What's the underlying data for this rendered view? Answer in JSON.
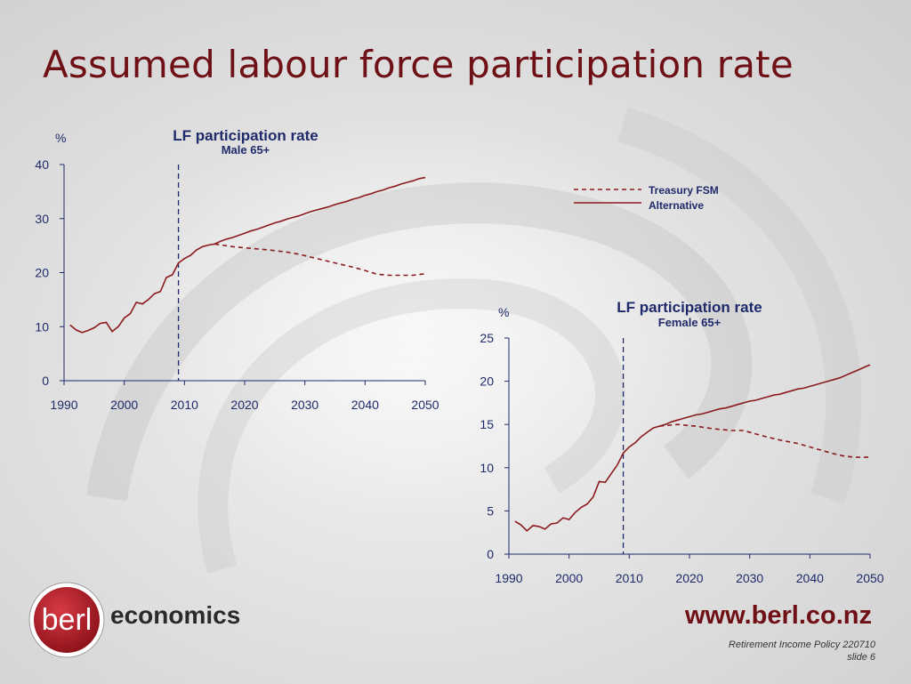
{
  "slide": {
    "title": "Assumed labour force participation rate"
  },
  "legend": {
    "items": [
      {
        "label": "Treasury FSM",
        "style": "dashed"
      },
      {
        "label": "Alternative",
        "style": "solid"
      }
    ]
  },
  "colors": {
    "series": "#8b1a1f",
    "axis_text": "#1f2a6b",
    "title": "#6e1016",
    "logo_bg": "#b51f2a"
  },
  "branding": {
    "logo_text": "berl",
    "logo_suffix": "economics",
    "url": "www.berl.co.nz",
    "footer_line1": "Retirement Income Policy 220710",
    "footer_line2": "slide 6"
  },
  "chart_data": [
    {
      "type": "line",
      "title": "LF participation  rate",
      "subtitle": "Male 65+",
      "ylabel": "%",
      "xlabel": "",
      "xlim": [
        1990,
        2050
      ],
      "ylim": [
        0,
        40
      ],
      "xticks": [
        1990,
        2000,
        2010,
        2020,
        2030,
        2040,
        2050
      ],
      "yticks": [
        0,
        10,
        20,
        30,
        40
      ],
      "vline_x": 2009,
      "series": [
        {
          "name": "Alternative",
          "style": "solid",
          "x": [
            1991,
            1992,
            1993,
            1994,
            1995,
            1996,
            1997,
            1998,
            1999,
            2000,
            2001,
            2002,
            2003,
            2004,
            2005,
            2006,
            2007,
            2008,
            2009,
            2010,
            2011,
            2012,
            2013,
            2014,
            2015,
            2016,
            2017,
            2018,
            2019,
            2020,
            2021,
            2022,
            2023,
            2024,
            2025,
            2026,
            2027,
            2028,
            2029,
            2030,
            2031,
            2032,
            2033,
            2034,
            2035,
            2036,
            2037,
            2038,
            2039,
            2040,
            2041,
            2042,
            2043,
            2044,
            2045,
            2046,
            2047,
            2048,
            2049,
            2050
          ],
          "y": [
            10.3,
            9.4,
            8.9,
            9.3,
            9.8,
            10.6,
            10.8,
            9.1,
            10.0,
            11.6,
            12.4,
            14.5,
            14.2,
            15.0,
            16.1,
            16.5,
            19.1,
            19.6,
            21.8,
            22.6,
            23.2,
            24.2,
            24.8,
            25.1,
            25.3,
            25.8,
            26.2,
            26.5,
            26.9,
            27.3,
            27.7,
            28.0,
            28.4,
            28.8,
            29.2,
            29.5,
            29.9,
            30.2,
            30.5,
            30.9,
            31.3,
            31.6,
            31.9,
            32.2,
            32.6,
            32.9,
            33.2,
            33.6,
            33.9,
            34.3,
            34.6,
            35.0,
            35.3,
            35.7,
            36.0,
            36.4,
            36.7,
            37.0,
            37.4,
            37.6
          ]
        },
        {
          "name": "Treasury FSM",
          "style": "dashed",
          "x": [
            2015,
            2018,
            2021,
            2024,
            2027,
            2029,
            2032,
            2035,
            2038,
            2040,
            2042,
            2044,
            2046,
            2048,
            2050
          ],
          "y": [
            25.3,
            24.8,
            24.5,
            24.2,
            23.8,
            23.4,
            22.6,
            21.8,
            21.0,
            20.4,
            19.7,
            19.5,
            19.5,
            19.5,
            19.8
          ]
        }
      ]
    },
    {
      "type": "line",
      "title": "LF participation  rate",
      "subtitle": "Female 65+",
      "ylabel": "%",
      "xlabel": "",
      "xlim": [
        1990,
        2050
      ],
      "ylim": [
        0,
        25
      ],
      "xticks": [
        1990,
        2000,
        2010,
        2020,
        2030,
        2040,
        2050
      ],
      "yticks": [
        0,
        5,
        10,
        15,
        20,
        25
      ],
      "vline_x": 2009,
      "series": [
        {
          "name": "Alternative",
          "style": "solid",
          "x": [
            1991,
            1992,
            1993,
            1994,
            1995,
            1996,
            1997,
            1998,
            1999,
            2000,
            2001,
            2002,
            2003,
            2004,
            2005,
            2006,
            2007,
            2008,
            2009,
            2010,
            2011,
            2012,
            2013,
            2014,
            2015,
            2016,
            2017,
            2018,
            2019,
            2020,
            2021,
            2022,
            2023,
            2024,
            2025,
            2026,
            2027,
            2028,
            2029,
            2030,
            2031,
            2032,
            2033,
            2034,
            2035,
            2036,
            2037,
            2038,
            2039,
            2040,
            2041,
            2042,
            2043,
            2044,
            2045,
            2046,
            2047,
            2048,
            2049,
            2050
          ],
          "y": [
            3.8,
            3.4,
            2.7,
            3.3,
            3.2,
            2.9,
            3.5,
            3.6,
            4.2,
            4.0,
            4.8,
            5.4,
            5.8,
            6.6,
            8.4,
            8.3,
            9.3,
            10.3,
            11.7,
            12.4,
            12.9,
            13.6,
            14.1,
            14.6,
            14.8,
            15.0,
            15.3,
            15.5,
            15.7,
            15.9,
            16.1,
            16.2,
            16.4,
            16.6,
            16.8,
            16.9,
            17.1,
            17.3,
            17.5,
            17.7,
            17.8,
            18.0,
            18.2,
            18.4,
            18.5,
            18.7,
            18.9,
            19.1,
            19.2,
            19.4,
            19.6,
            19.8,
            20.0,
            20.2,
            20.4,
            20.7,
            21.0,
            21.3,
            21.6,
            21.9
          ]
        },
        {
          "name": "Treasury FSM",
          "style": "dashed",
          "x": [
            2015,
            2018,
            2021,
            2024,
            2027,
            2029,
            2032,
            2035,
            2038,
            2040,
            2042,
            2044,
            2046,
            2048,
            2050
          ],
          "y": [
            14.8,
            15.0,
            14.8,
            14.5,
            14.3,
            14.3,
            13.7,
            13.2,
            12.8,
            12.4,
            12.0,
            11.6,
            11.3,
            11.2,
            11.2
          ]
        }
      ]
    }
  ]
}
